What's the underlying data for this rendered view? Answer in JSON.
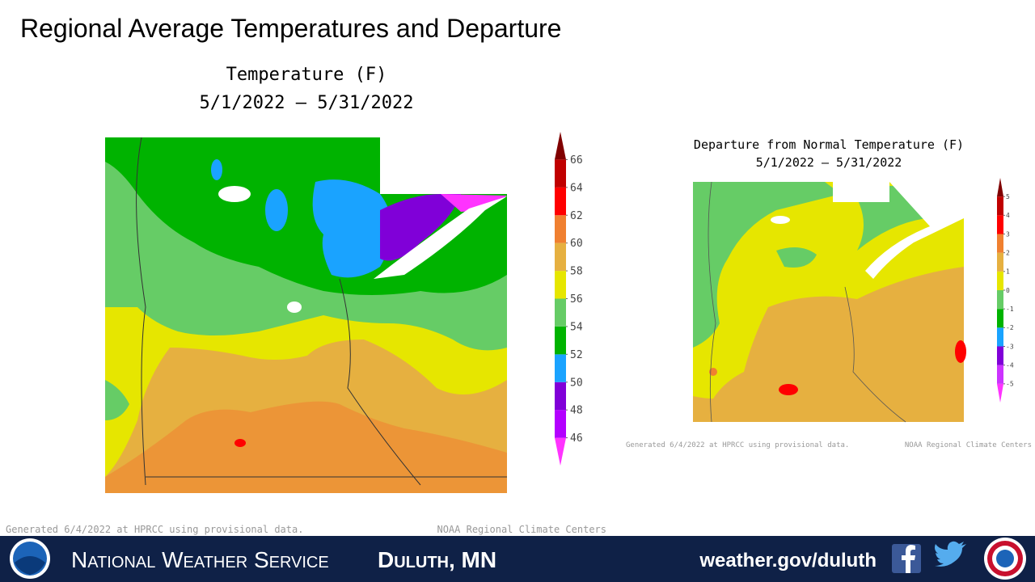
{
  "title": "Regional Average Temperatures and Departure",
  "maps": [
    {
      "title": "Temperature (F)",
      "period": "5/1/2022 – 5/31/2022",
      "scale": {
        "lim": [
          44,
          68
        ],
        "ticks": [
          46,
          48,
          50,
          52,
          54,
          56,
          58,
          60,
          62,
          64,
          66
        ],
        "colors": [
          "#ff33ff",
          "#b300ff",
          "#8000d8",
          "#1aa3ff",
          "#00b300",
          "#66cc66",
          "#e6e600",
          "#e6b040",
          "#f08030",
          "#ff0000",
          "#c00000",
          "#800000"
        ]
      },
      "credit_left": "Generated 6/4/2022 at HPRCC using provisional data.",
      "credit_right": "NOAA Regional Climate Centers"
    },
    {
      "title": "Departure from Normal Temperature (F)",
      "period": "5/1/2022 – 5/31/2022",
      "scale": {
        "lim": [
          -6,
          6
        ],
        "ticks": [
          -5,
          -4,
          -3,
          -2,
          -1,
          0,
          1,
          2,
          3,
          4,
          5
        ],
        "colors": [
          "#ff33ff",
          "#cc33ff",
          "#8000d8",
          "#1aa3ff",
          "#00b300",
          "#66cc66",
          "#e6e600",
          "#e6b040",
          "#f08030",
          "#ff0000",
          "#c00000",
          "#800000"
        ]
      },
      "credit_left": "Generated 6/4/2022 at HPRCC using provisional data.",
      "credit_right": "NOAA Regional Climate Centers"
    }
  ],
  "footer": {
    "agency": "National Weather Service",
    "office": "Duluth, MN",
    "url": "weather.gov/duluth"
  }
}
